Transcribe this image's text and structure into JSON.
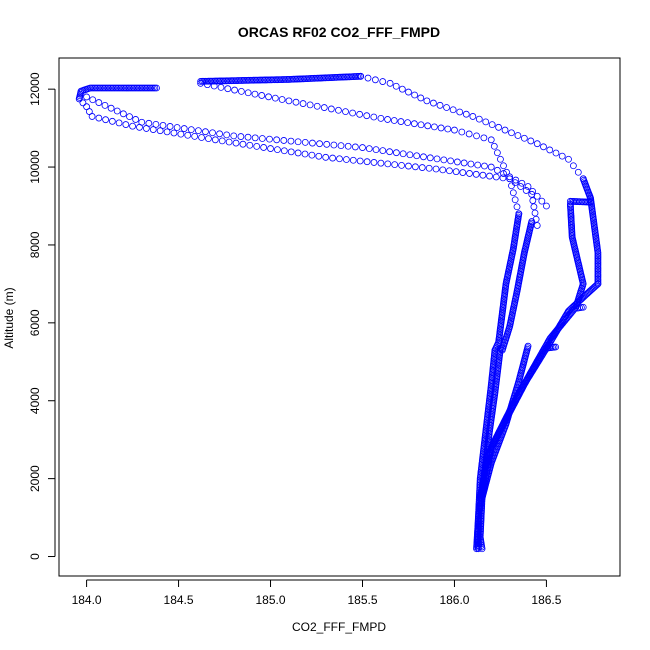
{
  "chart_data": {
    "type": "scatter",
    "title": "ORCAS RF02 CO2_FFF_FMPD",
    "xlabel": "CO2_FFF_FMPD",
    "ylabel": "Altitude (m)",
    "xlim": [
      183.85,
      186.9
    ],
    "ylim": [
      -500,
      12800
    ],
    "xticks": [
      184.0,
      184.5,
      185.0,
      185.5,
      186.0,
      186.5
    ],
    "xtick_labels": [
      "184.0",
      "184.5",
      "185.0",
      "185.5",
      "186.0",
      "186.5"
    ],
    "yticks": [
      0,
      2000,
      4000,
      6000,
      8000,
      10000,
      12000
    ],
    "ytick_labels": [
      "0",
      "2000",
      "4000",
      "6000",
      "8000",
      "10000",
      "12000"
    ],
    "grid": false,
    "marker": "open-circle",
    "color": "#0000ff",
    "series": [
      {
        "segments": [
          {
            "dense": true,
            "points": [
              [
                184.38,
                12030
              ],
              [
                184.02,
                12030
              ],
              [
                183.97,
                11950
              ],
              [
                183.96,
                11750
              ]
            ]
          },
          {
            "dense": false,
            "points": [
              [
                183.96,
                11750
              ],
              [
                184.0,
                11550
              ],
              [
                184.03,
                11300
              ],
              [
                184.25,
                11050
              ],
              [
                184.7,
                10700
              ],
              [
                185.3,
                10250
              ],
              [
                185.9,
                9950
              ],
              [
                186.3,
                9700
              ],
              [
                186.42,
                9300
              ],
              [
                186.45,
                8500
              ]
            ]
          },
          {
            "dense": false,
            "points": [
              [
                184.0,
                11800
              ],
              [
                184.3,
                11150
              ],
              [
                184.8,
                10800
              ],
              [
                185.5,
                10500
              ],
              [
                186.2,
                10000
              ],
              [
                186.4,
                9500
              ],
              [
                186.5,
                9000
              ]
            ]
          },
          {
            "dense": false,
            "points": [
              [
                184.62,
                12150
              ],
              [
                185.1,
                11700
              ],
              [
                185.6,
                11250
              ],
              [
                186.0,
                10950
              ],
              [
                186.2,
                10700
              ],
              [
                186.3,
                9700
              ],
              [
                186.35,
                8800
              ]
            ]
          },
          {
            "dense": true,
            "points": [
              [
                184.62,
                12200
              ],
              [
                185.1,
                12250
              ],
              [
                185.49,
                12330
              ]
            ]
          },
          {
            "dense": false,
            "points": [
              [
                185.49,
                12330
              ],
              [
                185.65,
                12150
              ],
              [
                185.85,
                11700
              ],
              [
                186.1,
                11300
              ],
              [
                186.45,
                10600
              ],
              [
                186.62,
                10200
              ],
              [
                186.7,
                9700
              ]
            ]
          },
          {
            "dense": true,
            "points": [
              [
                186.7,
                9700
              ],
              [
                186.74,
                9200
              ],
              [
                186.78,
                7800
              ],
              [
                186.78,
                7000
              ]
            ]
          },
          {
            "dense": true,
            "points": [
              [
                186.78,
                7000
              ],
              [
                186.71,
                6700
              ],
              [
                186.62,
                6300
              ],
              [
                186.52,
                5500
              ],
              [
                186.35,
                4200
              ],
              [
                186.2,
                2800
              ],
              [
                186.15,
                1500
              ],
              [
                186.14,
                500
              ],
              [
                186.15,
                200
              ]
            ]
          },
          {
            "dense": true,
            "points": [
              [
                186.63,
                9120
              ],
              [
                186.74,
                9100
              ]
            ]
          },
          {
            "dense": true,
            "points": [
              [
                186.63,
                9050
              ],
              [
                186.64,
                8200
              ],
              [
                186.7,
                7000
              ],
              [
                186.66,
                6400
              ],
              [
                186.52,
                5600
              ],
              [
                186.4,
                4600
              ],
              [
                186.3,
                3700
              ],
              [
                186.18,
                2600
              ],
              [
                186.14,
                1500
              ]
            ]
          },
          {
            "dense": true,
            "points": [
              [
                186.35,
                8800
              ],
              [
                186.32,
                7900
              ],
              [
                186.28,
                7000
              ],
              [
                186.24,
                5500
              ],
              [
                186.22,
                5300
              ],
              [
                186.2,
                4400
              ],
              [
                186.17,
                3200
              ],
              [
                186.14,
                2000
              ],
              [
                186.13,
                1000
              ],
              [
                186.13,
                200
              ]
            ]
          },
          {
            "dense": true,
            "points": [
              [
                186.42,
                8600
              ],
              [
                186.38,
                7800
              ],
              [
                186.34,
                6800
              ],
              [
                186.3,
                5900
              ],
              [
                186.26,
                5300
              ]
            ]
          },
          {
            "dense": true,
            "points": [
              [
                186.25,
                5350
              ],
              [
                186.22,
                4200
              ],
              [
                186.19,
                3200
              ],
              [
                186.16,
                2000
              ],
              [
                186.13,
                1000
              ],
              [
                186.12,
                200
              ]
            ]
          },
          {
            "dense": true,
            "points": [
              [
                186.4,
                5400
              ],
              [
                186.35,
                4500
              ],
              [
                186.28,
                3400
              ],
              [
                186.2,
                2400
              ],
              [
                186.15,
                1500
              ]
            ]
          },
          {
            "dense": true,
            "points": [
              [
                186.5,
                5350
              ],
              [
                186.55,
                5380
              ]
            ]
          },
          {
            "dense": true,
            "points": [
              [
                186.67,
                6380
              ],
              [
                186.7,
                6400
              ]
            ]
          }
        ]
      }
    ]
  }
}
